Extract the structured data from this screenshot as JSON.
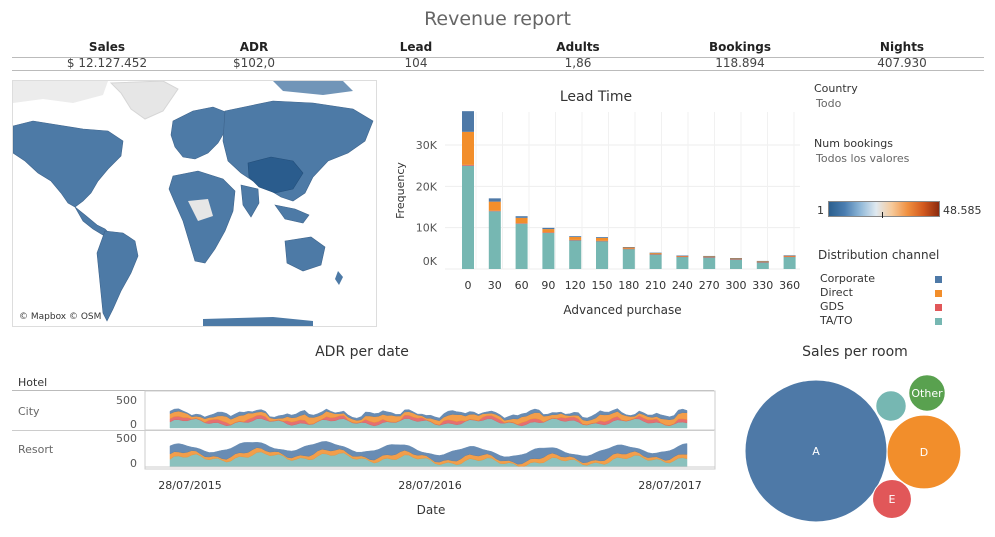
{
  "title": "Revenue report",
  "kpis": [
    {
      "label": "Sales",
      "value": "$ 12.127.452"
    },
    {
      "label": "ADR",
      "value": "$102,0"
    },
    {
      "label": "Lead",
      "value": "104"
    },
    {
      "label": "Adults",
      "value": "1,86"
    },
    {
      "label": "Bookings",
      "value": "118.894"
    },
    {
      "label": "Nights",
      "value": "407.930"
    }
  ],
  "map": {
    "attribution": "© Mapbox © OSM"
  },
  "filters": {
    "country_label": "Country",
    "country_value": "Todo",
    "num_bookings_label": "Num bookings",
    "num_bookings_value": "Todos los valores",
    "scale_min": "1",
    "scale_max": "48.585",
    "channel_label": "Distribution channel",
    "channels": [
      {
        "name": "Corporate",
        "color": "#4e79a7"
      },
      {
        "name": "Direct",
        "color": "#f28e2b"
      },
      {
        "name": "GDS",
        "color": "#e15759"
      },
      {
        "name": "TA/TO",
        "color": "#76b7b2"
      }
    ]
  },
  "chart_data": [
    {
      "type": "bar",
      "title": "Lead Time",
      "xlabel": "Advanced purchase",
      "ylabel": "Frequency",
      "y_ticks": [
        "0K",
        "10K",
        "20K",
        "30K"
      ],
      "ylim": [
        0,
        38000
      ],
      "categories": [
        "0",
        "30",
        "60",
        "90",
        "120",
        "150",
        "180",
        "210",
        "240",
        "270",
        "300",
        "330",
        "360"
      ],
      "series": [
        {
          "name": "TA/TO",
          "color": "#76b7b2",
          "values": [
            25000,
            14000,
            11000,
            8800,
            7000,
            6800,
            4900,
            3600,
            3000,
            2900,
            2400,
            1700,
            3000
          ]
        },
        {
          "name": "GDS",
          "color": "#e15759",
          "values": [
            200,
            100,
            80,
            60,
            40,
            30,
            20,
            10,
            10,
            10,
            10,
            5,
            10
          ]
        },
        {
          "name": "Direct",
          "color": "#f28e2b",
          "values": [
            8000,
            2200,
            1300,
            800,
            700,
            700,
            300,
            250,
            200,
            200,
            200,
            200,
            250
          ]
        },
        {
          "name": "Corporate",
          "color": "#4e79a7",
          "values": [
            5000,
            800,
            400,
            300,
            200,
            200,
            100,
            100,
            50,
            50,
            50,
            50,
            50
          ]
        }
      ]
    },
    {
      "type": "area",
      "title": "ADR per date",
      "xlabel": "Date",
      "row_header": "Hotel",
      "x_ticks": [
        "28/07/2015",
        "28/07/2016",
        "28/07/2017"
      ],
      "y_ticks": [
        "0",
        "500"
      ],
      "panels": [
        {
          "name": "City",
          "description": "stacked ADR by channel (TA/TO, GDS, Direct, Corporate), total roughly 150-350 per day"
        },
        {
          "name": "Resort",
          "description": "stacked ADR by channel (TA/TO, Direct, Corporate), total roughly 150-400 per day"
        }
      ]
    },
    {
      "type": "bubble",
      "title": "Sales per room",
      "categories": [
        "A",
        "D",
        "E",
        "Other",
        ""
      ],
      "colors": [
        "#4e79a7",
        "#f28e2b",
        "#e15759",
        "#59a14f",
        "#76b7b2"
      ],
      "relative_size": [
        1.0,
        0.27,
        0.075,
        0.066,
        0.046
      ]
    }
  ]
}
